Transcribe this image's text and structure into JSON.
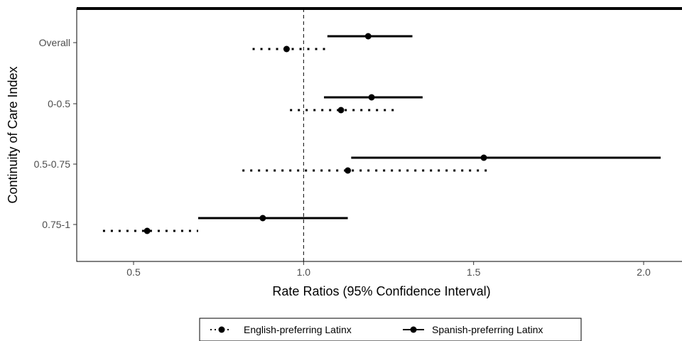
{
  "chart_data": {
    "type": "forest",
    "xlabel": "Rate Ratios (95% Confidence Interval)",
    "ylabel": "Continuity of Care Index",
    "xlim": [
      0.33,
      2.15
    ],
    "x_ticks": [
      0.5,
      1.0,
      1.5,
      2.0
    ],
    "x_tick_labels": [
      "0.5",
      "1.0",
      "1.5",
      "2.0"
    ],
    "reference_line": 1.0,
    "grid": false,
    "legend_position": "bottom",
    "categories": [
      "Overall",
      "0-0.5",
      "0.5-0.75",
      "0.75-1"
    ],
    "series": [
      {
        "name": "English-preferring Latinx",
        "line_style": "dotted",
        "color": "#000000",
        "estimates": [
          0.95,
          1.11,
          1.13,
          0.54
        ],
        "lower": [
          0.85,
          0.96,
          0.82,
          0.41
        ],
        "upper": [
          1.07,
          1.27,
          1.55,
          0.69
        ]
      },
      {
        "name": "Spanish-preferring Latinx",
        "line_style": "solid",
        "color": "#000000",
        "estimates": [
          1.19,
          1.2,
          1.53,
          0.88
        ],
        "lower": [
          1.07,
          1.06,
          1.14,
          0.69
        ],
        "upper": [
          1.32,
          1.35,
          2.05,
          1.13
        ]
      }
    ]
  }
}
